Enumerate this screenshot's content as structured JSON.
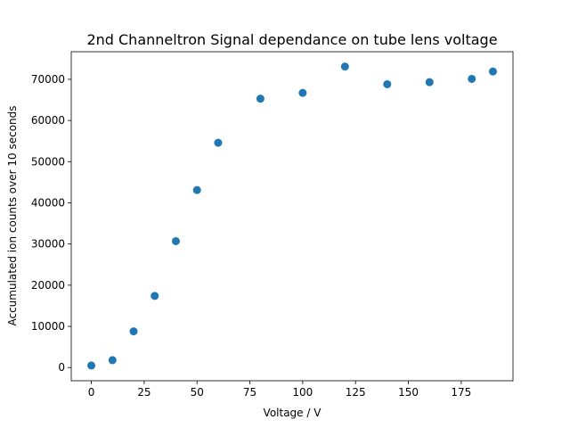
{
  "chart_data": {
    "type": "scatter",
    "title": "2nd Channeltron Signal dependance on tube lens voltage",
    "xlabel": "Voltage / V",
    "ylabel": "Accumulated ion counts over 10 seconds",
    "xlim": [
      -9.5,
      199.5
    ],
    "ylim": [
      -3200,
      76700
    ],
    "xticks": [
      0,
      25,
      50,
      75,
      100,
      125,
      150,
      175
    ],
    "yticks": [
      0,
      10000,
      20000,
      30000,
      40000,
      50000,
      60000,
      70000
    ],
    "grid": false,
    "color": "#1f77b4",
    "series": [
      {
        "x": [
          0,
          10,
          20,
          30,
          40,
          50,
          60,
          80,
          100,
          120,
          140,
          160,
          180,
          190
        ],
        "y": [
          500,
          1800,
          8800,
          17400,
          30700,
          43100,
          54600,
          65300,
          66700,
          73100,
          68800,
          69300,
          70100,
          71900
        ]
      }
    ]
  }
}
